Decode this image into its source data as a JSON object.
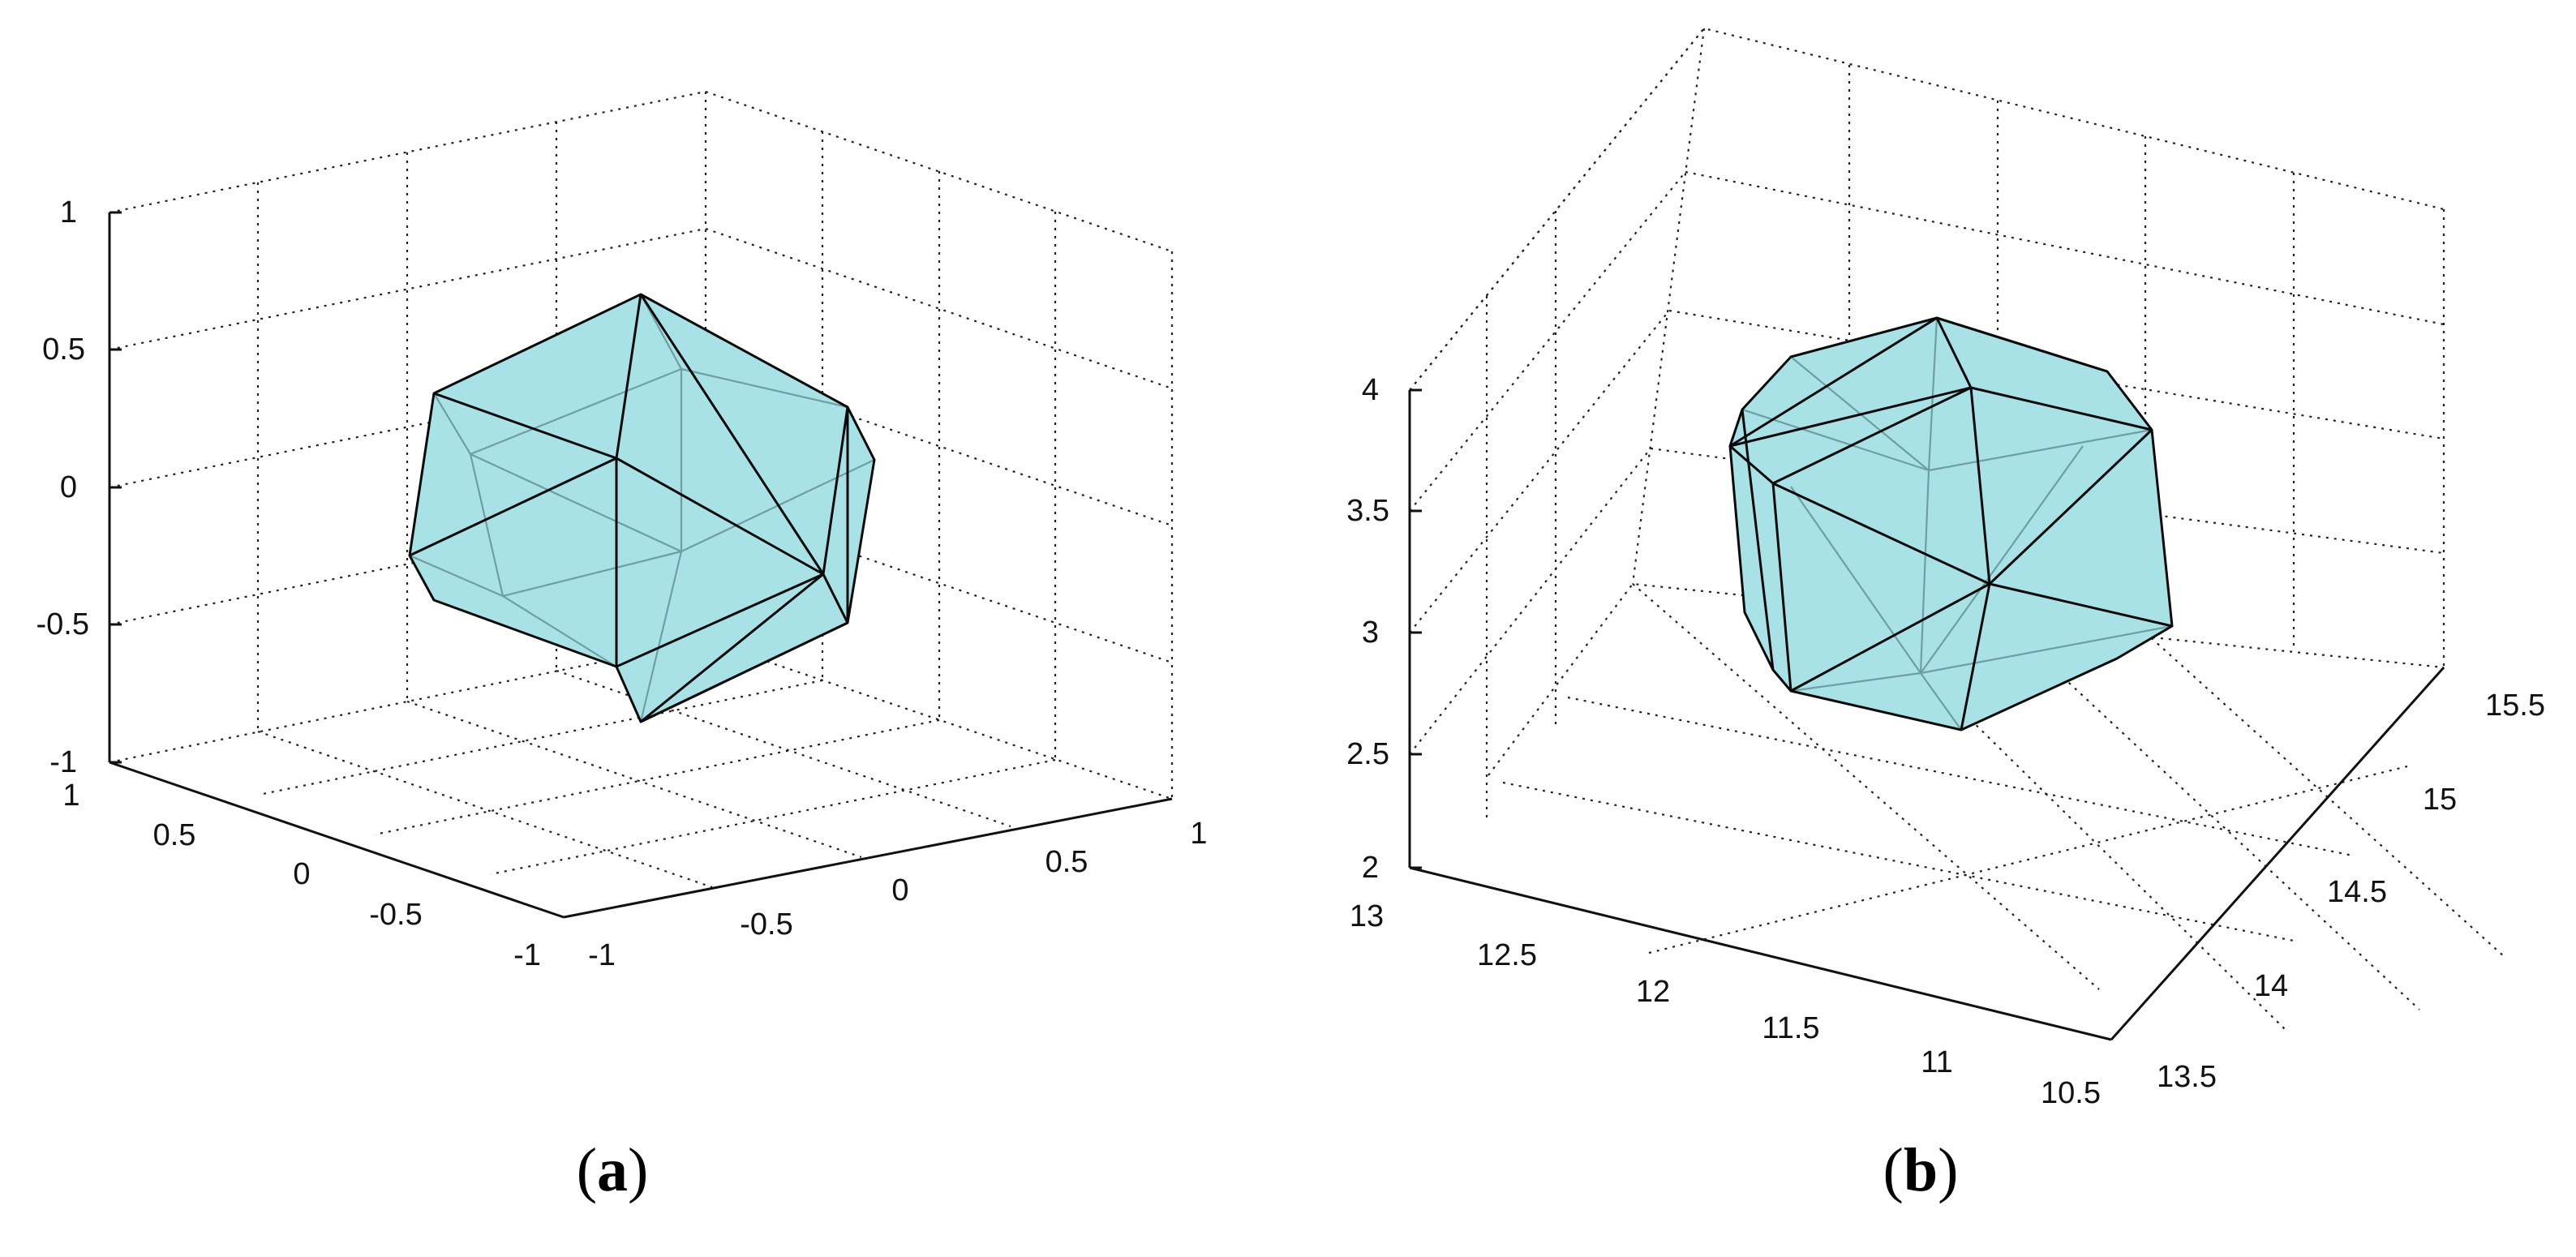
{
  "figures": [
    {
      "id": "a",
      "caption_open": "(",
      "caption_letter": "a",
      "caption_close": ")",
      "z_ticks": [
        "1",
        "0.5",
        "0",
        "-0.5",
        "-1"
      ],
      "left_floor_ticks": [
        "1",
        "0.5",
        "0",
        "-0.5",
        "-1"
      ],
      "right_floor_ticks": [
        "-1",
        "-0.5",
        "0",
        "0.5",
        "1"
      ],
      "face_color": "#a9e2e6"
    },
    {
      "id": "b",
      "caption_open": "(",
      "caption_letter": "b",
      "caption_close": ")",
      "z_ticks": [
        "4",
        "3.5",
        "3",
        "2.5",
        "2"
      ],
      "left_floor_ticks": [
        "13",
        "12.5",
        "12",
        "11.5",
        "11",
        "10.5"
      ],
      "right_floor_ticks": [
        "13.5",
        "14",
        "14.5",
        "15",
        "15.5"
      ],
      "face_color": "#a9e2e6"
    }
  ]
}
